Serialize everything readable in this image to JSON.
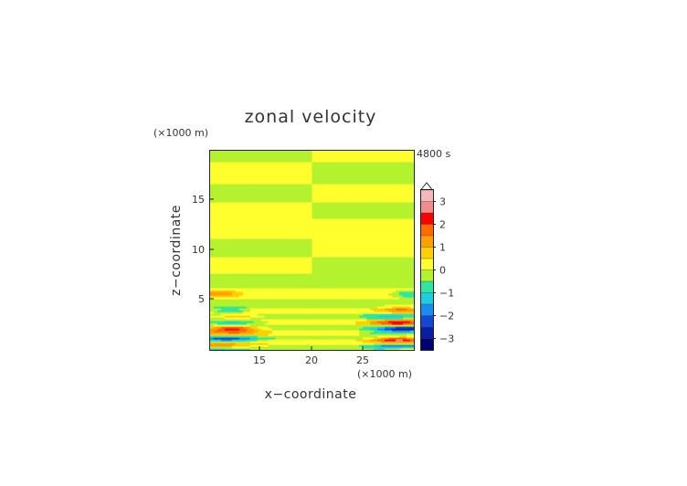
{
  "chart_data": {
    "type": "heatmap",
    "title": "zonal velocity",
    "time_label": "4800 s",
    "xlabel": "x−coordinate",
    "ylabel": "z−coordinate",
    "x_unit": "(×1000 m)",
    "y_unit": "(×1000 m)",
    "xlim": [
      10,
      29
    ],
    "ylim": [
      0,
      19.5
    ],
    "x_ticks": [
      "15",
      "20",
      "25"
    ],
    "y_ticks": [
      "5",
      "10",
      "15"
    ],
    "colorbar": {
      "ticks": [
        "3",
        "2",
        "1",
        "0",
        "−1",
        "−2",
        "−3"
      ],
      "levels": [
        {
          "lo": 3.0,
          "hi": 3.5,
          "color": "#f4b8b8"
        },
        {
          "lo": 2.5,
          "hi": 3.0,
          "color": "#f08c8c"
        },
        {
          "lo": 2.0,
          "hi": 2.5,
          "color": "#ff0000"
        },
        {
          "lo": 1.5,
          "hi": 2.0,
          "color": "#ff6a00"
        },
        {
          "lo": 1.0,
          "hi": 1.5,
          "color": "#ffa000"
        },
        {
          "lo": 0.5,
          "hi": 1.0,
          "color": "#ffd000"
        },
        {
          "lo": 0.0,
          "hi": 0.5,
          "color": "#ffff2e"
        },
        {
          "lo": -0.5,
          "hi": 0.0,
          "color": "#b5f22e"
        },
        {
          "lo": -1.0,
          "hi": -0.5,
          "color": "#2ee6a0"
        },
        {
          "lo": -1.5,
          "hi": -1.0,
          "color": "#1ecde0"
        },
        {
          "lo": -2.0,
          "hi": -1.5,
          "color": "#1a8cf0"
        },
        {
          "lo": -2.5,
          "hi": -2.0,
          "color": "#1446d8"
        },
        {
          "lo": -3.0,
          "hi": -2.5,
          "color": "#0a1ea0"
        },
        {
          "lo": -3.5,
          "hi": -3.0,
          "color": "#000070"
        }
      ],
      "overflow_high": true
    },
    "field_bands": [
      {
        "z0": 18.5,
        "z1": 19.5,
        "left": -0.3,
        "right": 0.3
      },
      {
        "z0": 16.2,
        "z1": 18.5,
        "left": 0.3,
        "right": -0.3
      },
      {
        "z0": 14.5,
        "z1": 16.2,
        "left": -0.3,
        "right": 0.3
      },
      {
        "z0": 12.8,
        "z1": 14.5,
        "left": 0.3,
        "right": -0.3
      },
      {
        "z0": 11.0,
        "z1": 12.8,
        "left": 0.3,
        "right": 0.3
      },
      {
        "z0": 9.2,
        "z1": 11.0,
        "left": -0.3,
        "right": 0.3
      },
      {
        "z0": 7.5,
        "z1": 9.2,
        "left": 0.3,
        "right": -0.3
      },
      {
        "z0": 6.1,
        "z1": 7.5,
        "left": -0.3,
        "right": -0.3
      },
      {
        "z0": 5.0,
        "z1": 6.1,
        "left": 0.3,
        "right": 0.3
      },
      {
        "z0": 4.2,
        "z1": 5.0,
        "left": -0.3,
        "right": -0.3
      },
      {
        "z0": 3.5,
        "z1": 4.2,
        "left": 0.3,
        "right": 0.3
      },
      {
        "z0": 3.0,
        "z1": 3.5,
        "left": -0.3,
        "right": -0.3
      },
      {
        "z0": 2.5,
        "z1": 3.0,
        "left": 0.3,
        "right": 0.3
      },
      {
        "z0": 2.0,
        "z1": 2.5,
        "left": -0.3,
        "right": -0.3
      },
      {
        "z0": 1.5,
        "z1": 2.0,
        "left": 0.3,
        "right": 0.3
      },
      {
        "z0": 1.0,
        "z1": 1.5,
        "left": -0.3,
        "right": -0.3
      },
      {
        "z0": 0.5,
        "z1": 1.0,
        "left": 0.3,
        "right": 0.3
      },
      {
        "z0": 0.0,
        "z1": 0.5,
        "left": -0.3,
        "right": -0.3
      }
    ],
    "features": [
      {
        "xc": 11.0,
        "zc": 5.5,
        "rx": 1.5,
        "rz": 0.3,
        "value": 1.2
      },
      {
        "xc": 11.8,
        "zc": 3.9,
        "rx": 1.7,
        "rz": 0.3,
        "value": -1.3
      },
      {
        "xc": 12.5,
        "zc": 3.3,
        "rx": 2.2,
        "rz": 0.25,
        "value": 1.2
      },
      {
        "xc": 12.0,
        "zc": 2.7,
        "rx": 2.8,
        "rz": 0.35,
        "value": -1.5
      },
      {
        "xc": 12.0,
        "zc": 2.15,
        "rx": 2.5,
        "rz": 0.32,
        "value": 2.6
      },
      {
        "xc": 12.0,
        "zc": 1.6,
        "rx": 3.0,
        "rz": 0.3,
        "value": 1.0
      },
      {
        "xc": 11.5,
        "zc": 1.1,
        "rx": 3.0,
        "rz": 0.3,
        "value": -2.2
      },
      {
        "xc": 11.0,
        "zc": 0.45,
        "rx": 3.5,
        "rz": 0.28,
        "value": 1.5
      },
      {
        "xc": 10.5,
        "zc": 0.15,
        "rx": 3.0,
        "rz": 0.18,
        "value": -1.2
      },
      {
        "xc": 28.5,
        "zc": 5.5,
        "rx": 1.5,
        "rz": 0.4,
        "value": -1.2
      },
      {
        "xc": 27.8,
        "zc": 4.0,
        "rx": 2.0,
        "rz": 0.4,
        "value": 1.3
      },
      {
        "xc": 27.0,
        "zc": 3.3,
        "rx": 2.5,
        "rz": 0.35,
        "value": -1.0
      },
      {
        "xc": 27.5,
        "zc": 2.7,
        "rx": 2.5,
        "rz": 0.35,
        "value": 2.2
      },
      {
        "xc": 28.0,
        "zc": 2.1,
        "rx": 2.5,
        "rz": 0.32,
        "value": -2.7
      },
      {
        "xc": 26.5,
        "zc": 1.6,
        "rx": 2.5,
        "rz": 0.3,
        "value": -1.0
      },
      {
        "xc": 27.5,
        "zc": 1.05,
        "rx": 2.5,
        "rz": 0.35,
        "value": 2.4
      },
      {
        "xc": 27.5,
        "zc": 0.45,
        "rx": 2.5,
        "rz": 0.3,
        "value": -1.8
      },
      {
        "xc": 28.5,
        "zc": 0.15,
        "rx": 1.5,
        "rz": 0.15,
        "value": 1.2
      }
    ],
    "grid": false
  }
}
